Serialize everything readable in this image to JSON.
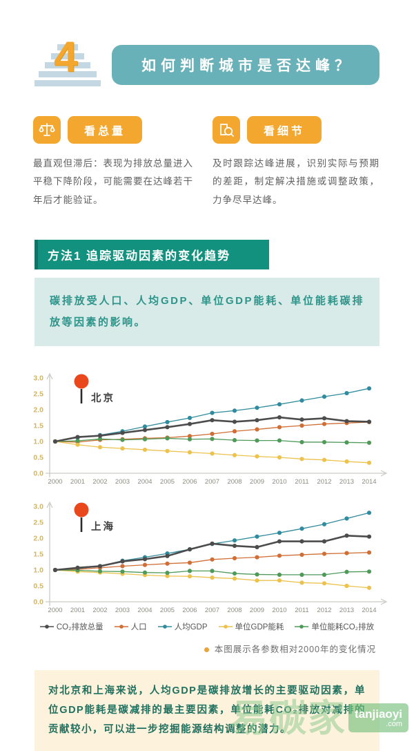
{
  "header": {
    "number": "4",
    "title": "如何判断城市是否达峰？"
  },
  "criteria": {
    "total": {
      "icon": "scale-icon",
      "badge": "看总量",
      "text": "最直观但滞后：表现为排放总量进入平稳下降阶段，可能需要在达峰若干年后才能验证。"
    },
    "detail": {
      "icon": "magnifier-doc-icon",
      "badge": "看细节",
      "text": "及时跟踪达峰进展，识别实际与预期的差距，制定解决措施或调整政策，力争尽早达峰。"
    }
  },
  "method": {
    "title": "方法1  追踪驱动因素的变化趋势",
    "intro": "碳排放受人口、人均GDP、单位GDP能耗、单位能耗碳排放等因素的影响。"
  },
  "colors": {
    "header_teal": "#68b1b8",
    "accent_orange": "#f3a72e",
    "method_green": "#13917f",
    "info_box_bg": "#d8ebe9",
    "conclusion_bg": "#fdf3dc",
    "conclusion_text": "#20705f",
    "pin_red": "#e8481c",
    "ytick_yellow": "#d4b45c",
    "xtick_gray": "#8c8c82",
    "series_co2_total": "#4c4c4c",
    "series_population": "#d06e36",
    "series_gdp_per_capita": "#2f8b9d",
    "series_energy_per_gdp": "#ecc24d",
    "series_co2_per_energy": "#4f9a59"
  },
  "footnote": "本图展示各参数相对2000年的变化情况",
  "conclusion": "对北京和上海来说，人均GDP是碳排放增长的主要驱动因素，单位GDP能耗是碳减排的最主要因素，单位能耗CO₂排放对减排的贡献较小，可以进一步挖掘能源结构调整的潜力。",
  "watermark": {
    "name": "易碳家",
    "site": "tanjiaoyi",
    "tld": ".com"
  },
  "chart_data": [
    {
      "type": "line",
      "title": "北京",
      "x": [
        "2000",
        "2001",
        "2002",
        "2003",
        "2004",
        "2005",
        "2006",
        "2007",
        "2008",
        "2009",
        "2010",
        "2011",
        "2012",
        "2013",
        "2014"
      ],
      "ylim": [
        0,
        3.0
      ],
      "yticks": [
        0.0,
        0.5,
        1.0,
        1.5,
        2.0,
        2.5,
        3.0
      ],
      "grid": false,
      "legend_position": "below-second-chart",
      "series": [
        {
          "name": "CO₂排放总量",
          "color": "#4c4c4c",
          "values": [
            1.0,
            1.14,
            1.18,
            1.27,
            1.36,
            1.45,
            1.55,
            1.67,
            1.62,
            1.67,
            1.76,
            1.69,
            1.73,
            1.64,
            1.62
          ]
        },
        {
          "name": "人口",
          "color": "#d06e36",
          "values": [
            1.0,
            0.98,
            1.05,
            1.07,
            1.1,
            1.12,
            1.17,
            1.24,
            1.32,
            1.38,
            1.45,
            1.5,
            1.55,
            1.58,
            1.61
          ]
        },
        {
          "name": "人均GDP",
          "color": "#2f8b9d",
          "values": [
            1.0,
            1.12,
            1.2,
            1.32,
            1.47,
            1.61,
            1.74,
            1.9,
            1.97,
            2.06,
            2.17,
            2.29,
            2.41,
            2.52,
            2.67
          ]
        },
        {
          "name": "单位GDP能耗",
          "color": "#ecc24d",
          "values": [
            1.0,
            0.9,
            0.82,
            0.78,
            0.74,
            0.7,
            0.66,
            0.62,
            0.57,
            0.53,
            0.5,
            0.45,
            0.42,
            0.37,
            0.33
          ]
        },
        {
          "name": "单位能耗CO₂排放",
          "color": "#4f9a59",
          "values": [
            1.0,
            1.02,
            1.08,
            1.05,
            1.07,
            1.1,
            1.07,
            1.08,
            1.04,
            1.03,
            1.03,
            0.98,
            0.98,
            0.97,
            0.96
          ]
        }
      ]
    },
    {
      "type": "line",
      "title": "上海",
      "x": [
        "2000",
        "2001",
        "2002",
        "2003",
        "2004",
        "2005",
        "2006",
        "2007",
        "2008",
        "2009",
        "2010",
        "2011",
        "2012",
        "2013",
        "2014"
      ],
      "ylim": [
        0,
        3.0
      ],
      "yticks": [
        0.0,
        0.5,
        1.0,
        1.5,
        2.0,
        2.5,
        3.0
      ],
      "grid": false,
      "series": [
        {
          "name": "CO₂排放总量",
          "color": "#4c4c4c",
          "values": [
            1.0,
            1.07,
            1.12,
            1.27,
            1.34,
            1.44,
            1.65,
            1.83,
            1.76,
            1.72,
            1.9,
            1.9,
            1.9,
            2.08,
            2.05
          ]
        },
        {
          "name": "人口",
          "color": "#d06e36",
          "values": [
            1.0,
            1.02,
            1.07,
            1.12,
            1.16,
            1.2,
            1.23,
            1.33,
            1.37,
            1.4,
            1.45,
            1.48,
            1.51,
            1.53,
            1.55
          ]
        },
        {
          "name": "人均GDP",
          "color": "#2f8b9d",
          "values": [
            1.0,
            1.04,
            1.12,
            1.29,
            1.4,
            1.52,
            1.65,
            1.82,
            1.93,
            2.05,
            2.17,
            2.3,
            2.44,
            2.62,
            2.8
          ]
        },
        {
          "name": "单位GDP能耗",
          "color": "#ecc24d",
          "values": [
            1.0,
            0.95,
            0.92,
            0.88,
            0.84,
            0.81,
            0.8,
            0.76,
            0.73,
            0.67,
            0.67,
            0.6,
            0.58,
            0.5,
            0.44
          ]
        },
        {
          "name": "单位能耗CO₂排放",
          "color": "#4f9a59",
          "values": [
            1.0,
            0.99,
            0.96,
            0.95,
            0.92,
            0.91,
            0.97,
            0.97,
            0.89,
            0.86,
            0.85,
            0.85,
            0.85,
            0.94,
            0.95
          ]
        }
      ]
    }
  ]
}
